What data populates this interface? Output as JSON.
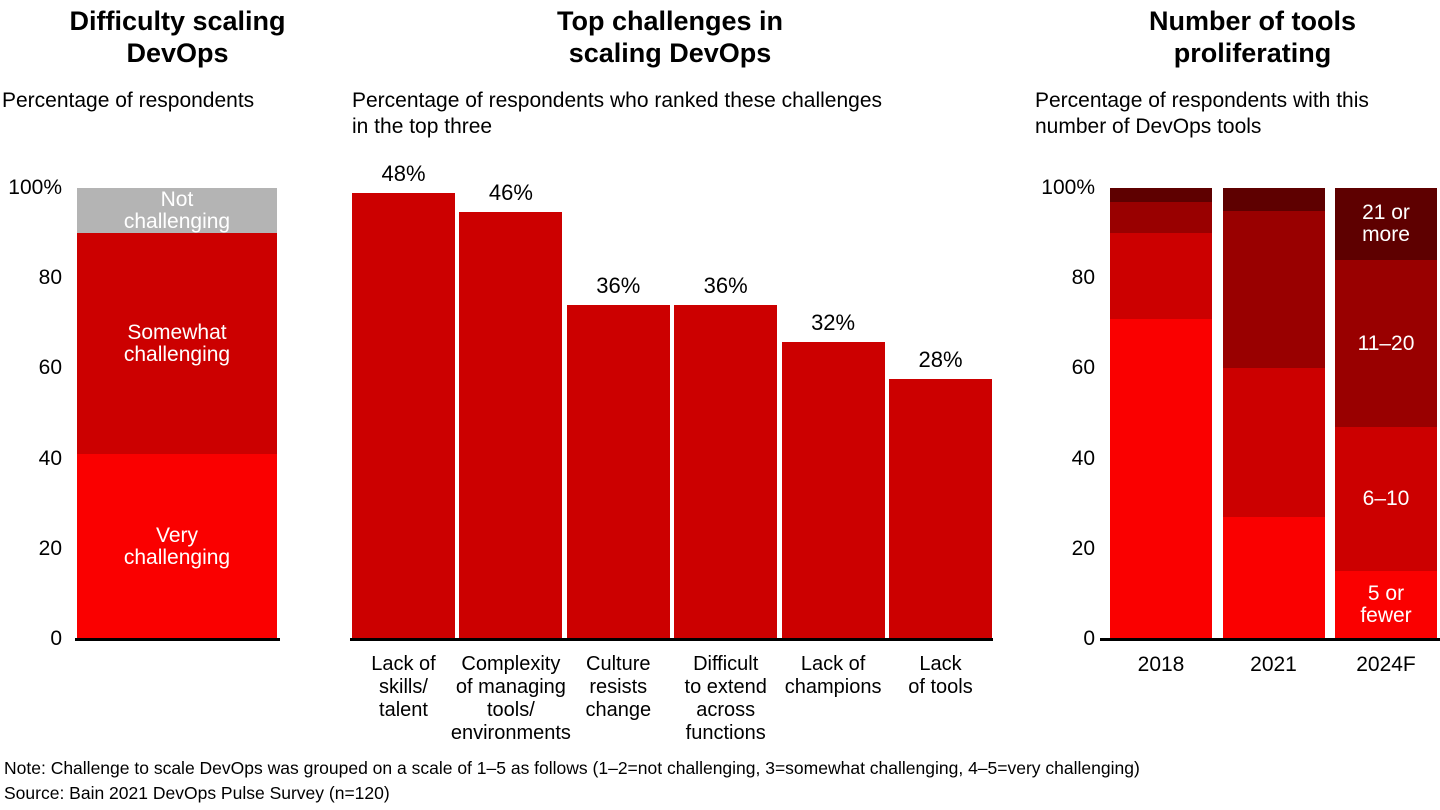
{
  "note": "Note: Challenge to scale DevOps was grouped on a scale of 1–5 as follows (1–2=not challenging, 3=somewhat challenging, 4–5=very challenging)",
  "source": "Source: Bain 2021 DevOps Pulse Survey (n=120)",
  "chart_data": [
    {
      "type": "bar",
      "subtype": "stacked-single-column",
      "title": "Difficulty scaling\nDevOps",
      "subtitle": "Percentage of respondents",
      "categories": [
        ""
      ],
      "series": [
        {
          "name": "Very challenging",
          "label": "Very\nchallenging",
          "values": [
            41
          ],
          "color": "#fa0000",
          "label_color": "#ffffff"
        },
        {
          "name": "Somewhat challenging",
          "label": "Somewhat\nchallenging",
          "values": [
            49
          ],
          "color": "#cc0000",
          "label_color": "#ffffff"
        },
        {
          "name": "Not challenging",
          "label": "Not\nchallenging",
          "values": [
            10
          ],
          "color": "#b4b4b4",
          "label_color": "#ffffff"
        }
      ],
      "ylim": [
        0,
        100
      ],
      "yticks": [
        {
          "value": 0,
          "label": "0"
        },
        {
          "value": 20,
          "label": "20"
        },
        {
          "value": 40,
          "label": "40"
        },
        {
          "value": 60,
          "label": "60"
        },
        {
          "value": 80,
          "label": "80"
        },
        {
          "value": 100,
          "label": "100%"
        }
      ],
      "grid": false,
      "legend": "labels-inside-segments"
    },
    {
      "type": "bar",
      "subtype": "simple-columns",
      "title": "Top challenges in\nscaling DevOps",
      "subtitle": "Percentage of respondents who ranked these challenges\nin the top three",
      "categories": [
        "Lack of\nskills/\ntalent",
        "Complexity\nof managing\ntools/\nenvironments",
        "Culture\nresists\nchange",
        "Difficult\nto extend\nacross\nfunctions",
        "Lack of\nchampions",
        "Lack\nof tools"
      ],
      "values": [
        48,
        46,
        36,
        36,
        32,
        28
      ],
      "value_labels": [
        "48%",
        "46%",
        "36%",
        "36%",
        "32%",
        "28%"
      ],
      "color": "#cc0000",
      "yaxis": "hidden",
      "grid": false,
      "legend": "none"
    },
    {
      "type": "bar",
      "subtype": "stacked-columns",
      "title": "Number of tools\nproliferating",
      "subtitle": "Percentage of respondents with this\nnumber of DevOps tools",
      "categories": [
        "2018",
        "2021",
        "2024F"
      ],
      "series": [
        {
          "name": "5 or fewer",
          "label": "5 or\nfewer",
          "values": [
            71,
            27,
            15
          ],
          "color": "#fa0000",
          "label_color": "#ffffff"
        },
        {
          "name": "6–10",
          "label": "6–10",
          "values": [
            19,
            33,
            32
          ],
          "color": "#cc0000",
          "label_color": "#ffffff"
        },
        {
          "name": "11–20",
          "label": "11–20",
          "values": [
            7,
            35,
            37
          ],
          "color": "#990000",
          "label_color": "#ffffff"
        },
        {
          "name": "21 or more",
          "label": "21 or\nmore",
          "values": [
            3,
            5,
            16
          ],
          "color": "#5e0000",
          "label_color": "#ffffff"
        }
      ],
      "ylim": [
        0,
        100
      ],
      "yticks": [
        {
          "value": 0,
          "label": "0"
        },
        {
          "value": 20,
          "label": "20"
        },
        {
          "value": 40,
          "label": "40"
        },
        {
          "value": 60,
          "label": "60"
        },
        {
          "value": 80,
          "label": "80"
        },
        {
          "value": 100,
          "label": "100%"
        }
      ],
      "grid": false,
      "legend": "labels-inside-last-column"
    }
  ]
}
